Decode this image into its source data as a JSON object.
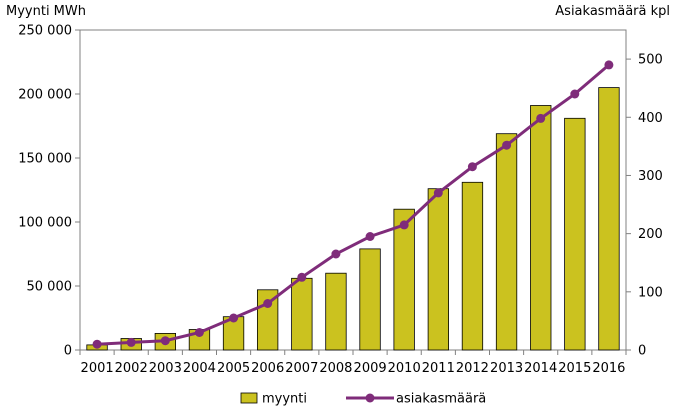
{
  "chart_data": {
    "type": "bar",
    "categories": [
      "2001",
      "2002",
      "2003",
      "2004",
      "2005",
      "2006",
      "2007",
      "2008",
      "2009",
      "2010",
      "2011",
      "2012",
      "2013",
      "2014",
      "2015",
      "2016"
    ],
    "series": [
      {
        "name": "myynti",
        "type": "bar",
        "axis": "left",
        "color": "#cbc21f",
        "values": [
          4000,
          9000,
          13000,
          16000,
          26000,
          47000,
          56000,
          60000,
          79000,
          110000,
          126000,
          131000,
          169000,
          191000,
          181000,
          205000
        ]
      },
      {
        "name": "asiakasmäärä",
        "type": "line",
        "axis": "right",
        "color": "#7f2c7a",
        "values": [
          10,
          13,
          16,
          30,
          55,
          80,
          125,
          165,
          195,
          215,
          270,
          315,
          352,
          398,
          440,
          490
        ]
      }
    ],
    "y_left": {
      "label": "Myynti MWh",
      "ylim": [
        0,
        250000
      ],
      "ticks": [
        {
          "value": 0,
          "label": "0"
        },
        {
          "value": 50000,
          "label": "50 000"
        },
        {
          "value": 100000,
          "label": "100 000"
        },
        {
          "value": 150000,
          "label": "150 000"
        },
        {
          "value": 200000,
          "label": "200 000"
        },
        {
          "value": 250000,
          "label": "250 000"
        }
      ]
    },
    "y_right": {
      "label": "Asiakasmäärä kpl",
      "ylim": [
        0,
        550
      ],
      "ticks": [
        {
          "value": 0,
          "label": "0"
        },
        {
          "value": 100,
          "label": "100"
        },
        {
          "value": 200,
          "label": "200"
        },
        {
          "value": 300,
          "label": "300"
        },
        {
          "value": 400,
          "label": "400"
        },
        {
          "value": 500,
          "label": "500"
        }
      ]
    },
    "legend": "bottom",
    "grid": false
  }
}
